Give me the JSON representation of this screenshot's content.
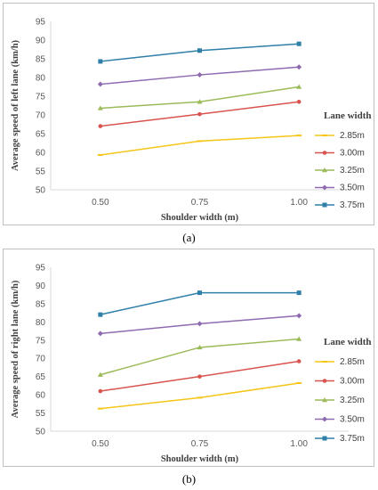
{
  "captions": {
    "a": "(a)",
    "b": "(b)"
  },
  "legend_title": "Lane width",
  "colors": [
    "#f5c518",
    "#d9534f",
    "#9bbb59",
    "#8e6bb0",
    "#2f7fa8"
  ],
  "markers": [
    "dash",
    "circle",
    "triangle",
    "diamond",
    "square"
  ],
  "chart_data": [
    {
      "type": "line",
      "title": "",
      "xlabel": "Shoulder width (m)",
      "ylabel": "Average speed of left lane (km/h)",
      "categories": [
        "0.50",
        "0.75",
        "1.00"
      ],
      "ylim": [
        50,
        95
      ],
      "yticks": [
        50,
        55,
        60,
        65,
        70,
        75,
        80,
        85,
        90,
        95
      ],
      "grid": false,
      "legend": "right",
      "series": [
        {
          "name": "2.85m",
          "values": [
            59.3,
            63.0,
            64.5
          ]
        },
        {
          "name": "3.00m",
          "values": [
            67.0,
            70.2,
            73.5
          ]
        },
        {
          "name": "3.25m",
          "values": [
            71.8,
            73.5,
            77.5
          ]
        },
        {
          "name": "3.50m",
          "values": [
            78.2,
            80.7,
            82.8
          ]
        },
        {
          "name": "3.75m",
          "values": [
            84.3,
            87.2,
            89.0
          ]
        }
      ]
    },
    {
      "type": "line",
      "title": "",
      "xlabel": "Shoulder width (m)",
      "ylabel": "Average speed of right lane (km/h)",
      "categories": [
        "0.50",
        "0.75",
        "1.00"
      ],
      "ylim": [
        50,
        95
      ],
      "yticks": [
        50,
        55,
        60,
        65,
        70,
        75,
        80,
        85,
        90,
        95
      ],
      "grid": false,
      "legend": "right",
      "series": [
        {
          "name": "2.85m",
          "values": [
            56.2,
            59.2,
            63.2
          ]
        },
        {
          "name": "3.00m",
          "values": [
            61.0,
            65.0,
            69.2
          ]
        },
        {
          "name": "3.25m",
          "values": [
            65.5,
            73.0,
            75.3
          ]
        },
        {
          "name": "3.50m",
          "values": [
            76.8,
            79.5,
            81.7
          ]
        },
        {
          "name": "3.75m",
          "values": [
            82.0,
            88.0,
            88.0
          ]
        }
      ]
    }
  ]
}
